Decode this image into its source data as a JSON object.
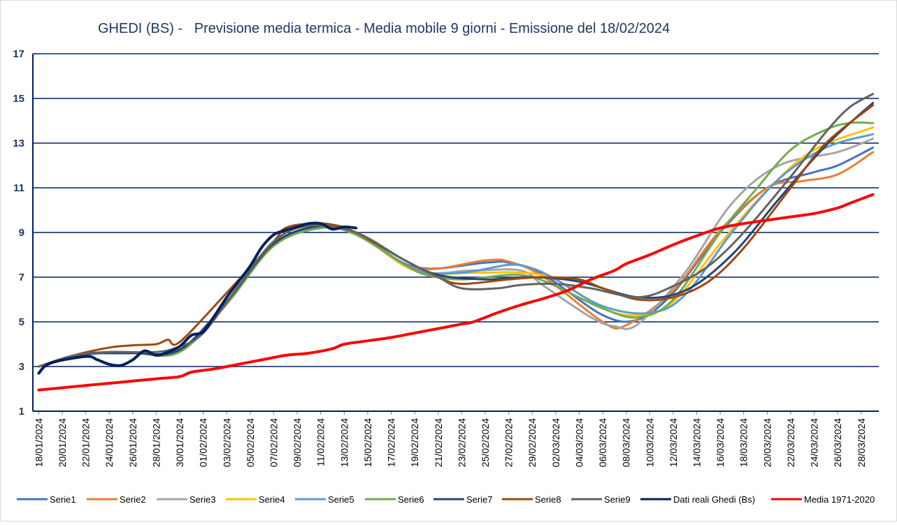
{
  "chart_data": {
    "type": "line",
    "title": "GHEDI (BS) -   Previsione media termica - Media mobile 9 giorni - Emissione del 18/02/2024",
    "xlabel": "",
    "ylabel": "",
    "ylim": [
      1,
      17
    ],
    "y_ticks": [
      1,
      3,
      5,
      7,
      9,
      11,
      13,
      15,
      17
    ],
    "grid": true,
    "legend_position": "bottom",
    "x_start": "18/01/2024",
    "x_end": "29/03/2024",
    "x_tick_labels": [
      "18/01/2024",
      "20/01/2024",
      "22/01/2024",
      "24/01/2024",
      "26/01/2024",
      "28/01/2024",
      "30/01/2024",
      "01/02/2024",
      "03/02/2024",
      "05/02/2024",
      "07/02/2024",
      "09/02/2024",
      "11/02/2024",
      "13/02/2024",
      "15/02/2024",
      "17/02/2024",
      "19/02/2024",
      "21/02/2024",
      "23/02/2024",
      "25/02/2024",
      "27/02/2024",
      "29/02/2024",
      "02/03/2024",
      "04/03/2024",
      "06/03/2024",
      "08/03/2024",
      "10/03/2024",
      "12/03/2024",
      "14/03/2024",
      "16/03/2024",
      "18/03/2024",
      "20/03/2024",
      "22/03/2024",
      "24/03/2024",
      "26/03/2024",
      "28/03/2024"
    ],
    "series": [
      {
        "name": "Serie1",
        "color": "#4472C4",
        "width": 3,
        "points": [
          [
            "18/01/2024",
            3.0
          ],
          [
            "22/01/2024",
            3.55
          ],
          [
            "26/01/2024",
            3.6
          ],
          [
            "30/01/2024",
            3.75
          ],
          [
            "03/02/2024",
            5.9
          ],
          [
            "07/02/2024",
            8.5
          ],
          [
            "11/02/2024",
            9.25
          ],
          [
            "14/02/2024",
            9.0
          ],
          [
            "19/02/2024",
            7.45
          ],
          [
            "25/02/2024",
            7.65
          ],
          [
            "27/02/2024",
            7.65
          ],
          [
            "01/03/2024",
            7.1
          ],
          [
            "06/03/2024",
            5.3
          ],
          [
            "09/03/2024",
            5.1
          ],
          [
            "12/03/2024",
            6.3
          ],
          [
            "16/03/2024",
            9.0
          ],
          [
            "20/03/2024",
            11.0
          ],
          [
            "24/03/2024",
            11.7
          ],
          [
            "26/03/2024",
            12.0
          ],
          [
            "29/03/2024",
            12.8
          ]
        ]
      },
      {
        "name": "Serie2",
        "color": "#ED7D31",
        "width": 3,
        "points": [
          [
            "18/01/2024",
            3.0
          ],
          [
            "22/01/2024",
            3.55
          ],
          [
            "26/01/2024",
            3.6
          ],
          [
            "30/01/2024",
            3.75
          ],
          [
            "03/02/2024",
            5.9
          ],
          [
            "07/02/2024",
            8.5
          ],
          [
            "11/02/2024",
            9.3
          ],
          [
            "14/02/2024",
            9.0
          ],
          [
            "19/02/2024",
            7.4
          ],
          [
            "25/02/2024",
            7.75
          ],
          [
            "27/02/2024",
            7.7
          ],
          [
            "01/03/2024",
            7.0
          ],
          [
            "06/03/2024",
            5.0
          ],
          [
            "08/03/2024",
            4.85
          ],
          [
            "12/03/2024",
            6.4
          ],
          [
            "16/03/2024",
            9.1
          ],
          [
            "20/03/2024",
            11.0
          ],
          [
            "23/03/2024",
            11.3
          ],
          [
            "26/03/2024",
            11.6
          ],
          [
            "29/03/2024",
            12.6
          ]
        ]
      },
      {
        "name": "Serie3",
        "color": "#A5A5A5",
        "width": 3,
        "points": [
          [
            "18/01/2024",
            3.0
          ],
          [
            "22/01/2024",
            3.55
          ],
          [
            "26/01/2024",
            3.6
          ],
          [
            "30/01/2024",
            3.75
          ],
          [
            "03/02/2024",
            5.8
          ],
          [
            "07/02/2024",
            8.4
          ],
          [
            "11/02/2024",
            9.2
          ],
          [
            "14/02/2024",
            9.0
          ],
          [
            "19/02/2024",
            7.3
          ],
          [
            "24/02/2024",
            7.3
          ],
          [
            "28/02/2024",
            7.3
          ],
          [
            "01/03/2024",
            6.6
          ],
          [
            "05/03/2024",
            5.2
          ],
          [
            "07/03/2024",
            4.8
          ],
          [
            "09/03/2024",
            4.9
          ],
          [
            "13/03/2024",
            7.2
          ],
          [
            "17/03/2024",
            10.3
          ],
          [
            "21/03/2024",
            12.0
          ],
          [
            "26/03/2024",
            12.6
          ],
          [
            "29/03/2024",
            13.2
          ]
        ]
      },
      {
        "name": "Serie4",
        "color": "#FFC000",
        "width": 3,
        "points": [
          [
            "18/01/2024",
            3.0
          ],
          [
            "22/01/2024",
            3.55
          ],
          [
            "26/01/2024",
            3.6
          ],
          [
            "30/01/2024",
            3.75
          ],
          [
            "03/02/2024",
            5.9
          ],
          [
            "07/02/2024",
            8.5
          ],
          [
            "11/02/2024",
            9.25
          ],
          [
            "14/02/2024",
            9.0
          ],
          [
            "19/02/2024",
            7.3
          ],
          [
            "24/02/2024",
            7.2
          ],
          [
            "28/02/2024",
            7.2
          ],
          [
            "02/03/2024",
            6.9
          ],
          [
            "06/03/2024",
            5.6
          ],
          [
            "09/03/2024",
            5.3
          ],
          [
            "12/03/2024",
            5.9
          ],
          [
            "16/03/2024",
            8.5
          ],
          [
            "20/03/2024",
            10.9
          ],
          [
            "24/03/2024",
            12.7
          ],
          [
            "29/03/2024",
            13.7
          ]
        ]
      },
      {
        "name": "Serie5",
        "color": "#5B9BD5",
        "width": 3,
        "points": [
          [
            "18/01/2024",
            3.0
          ],
          [
            "22/01/2024",
            3.55
          ],
          [
            "26/01/2024",
            3.6
          ],
          [
            "30/01/2024",
            3.75
          ],
          [
            "03/02/2024",
            5.9
          ],
          [
            "07/02/2024",
            8.5
          ],
          [
            "11/02/2024",
            9.25
          ],
          [
            "14/02/2024",
            9.0
          ],
          [
            "19/02/2024",
            7.35
          ],
          [
            "23/02/2024",
            7.2
          ],
          [
            "27/02/2024",
            7.55
          ],
          [
            "29/02/2024",
            7.4
          ],
          [
            "02/03/2024",
            6.9
          ],
          [
            "06/03/2024",
            5.7
          ],
          [
            "10/03/2024",
            5.4
          ],
          [
            "13/03/2024",
            6.2
          ],
          [
            "17/03/2024",
            9.0
          ],
          [
            "21/03/2024",
            11.4
          ],
          [
            "25/03/2024",
            12.8
          ],
          [
            "29/03/2024",
            13.4
          ]
        ]
      },
      {
        "name": "Serie6",
        "color": "#70AD47",
        "width": 3,
        "points": [
          [
            "18/01/2024",
            3.0
          ],
          [
            "22/01/2024",
            3.55
          ],
          [
            "26/01/2024",
            3.6
          ],
          [
            "30/01/2024",
            3.65
          ],
          [
            "03/02/2024",
            5.8
          ],
          [
            "07/02/2024",
            8.4
          ],
          [
            "11/02/2024",
            9.2
          ],
          [
            "14/02/2024",
            8.9
          ],
          [
            "18/02/2024",
            7.6
          ],
          [
            "20/02/2024",
            7.1
          ],
          [
            "23/02/2024",
            6.9
          ],
          [
            "27/02/2024",
            7.1
          ],
          [
            "29/02/2024",
            7.0
          ],
          [
            "02/03/2024",
            6.6
          ],
          [
            "06/03/2024",
            5.6
          ],
          [
            "09/03/2024",
            5.2
          ],
          [
            "12/03/2024",
            6.0
          ],
          [
            "16/03/2024",
            9.0
          ],
          [
            "19/03/2024",
            10.9
          ],
          [
            "22/03/2024",
            12.7
          ],
          [
            "25/03/2024",
            13.6
          ],
          [
            "27/03/2024",
            13.9
          ],
          [
            "29/03/2024",
            13.9
          ]
        ]
      },
      {
        "name": "Serie7",
        "color": "#264478",
        "width": 3,
        "points": [
          [
            "18/01/2024",
            3.0
          ],
          [
            "22/01/2024",
            3.55
          ],
          [
            "26/01/2024",
            3.6
          ],
          [
            "30/01/2024",
            3.75
          ],
          [
            "03/02/2024",
            5.9
          ],
          [
            "07/02/2024",
            8.5
          ],
          [
            "11/02/2024",
            9.3
          ],
          [
            "14/02/2024",
            9.0
          ],
          [
            "18/02/2024",
            7.8
          ],
          [
            "21/02/2024",
            7.1
          ],
          [
            "25/02/2024",
            6.9
          ],
          [
            "29/02/2024",
            7.0
          ],
          [
            "04/03/2024",
            6.8
          ],
          [
            "09/03/2024",
            6.1
          ],
          [
            "13/03/2024",
            6.4
          ],
          [
            "17/03/2024",
            8.0
          ],
          [
            "21/03/2024",
            10.5
          ],
          [
            "25/03/2024",
            12.9
          ],
          [
            "29/03/2024",
            14.8
          ]
        ]
      },
      {
        "name": "Serie8",
        "color": "#9E480E",
        "width": 3,
        "points": [
          [
            "18/01/2024",
            3.0
          ],
          [
            "21/01/2024",
            3.5
          ],
          [
            "24/01/2024",
            3.85
          ],
          [
            "26/01/2024",
            3.95
          ],
          [
            "28/01/2024",
            4.0
          ],
          [
            "29/01/2024",
            4.2
          ],
          [
            "30/01/2024",
            4.1
          ],
          [
            "03/02/2024",
            6.3
          ],
          [
            "07/02/2024",
            8.6
          ],
          [
            "08/02/2024",
            9.2
          ],
          [
            "10/02/2024",
            9.4
          ],
          [
            "12/02/2024",
            9.35
          ],
          [
            "14/02/2024",
            9.0
          ],
          [
            "18/02/2024",
            7.8
          ],
          [
            "21/02/2024",
            7.0
          ],
          [
            "23/02/2024",
            6.7
          ],
          [
            "27/02/2024",
            6.9
          ],
          [
            "01/03/2024",
            7.0
          ],
          [
            "04/03/2024",
            6.9
          ],
          [
            "06/03/2024",
            6.5
          ],
          [
            "09/03/2024",
            6.0
          ],
          [
            "12/03/2024",
            6.1
          ],
          [
            "15/03/2024",
            6.8
          ],
          [
            "18/03/2024",
            8.3
          ],
          [
            "22/03/2024",
            11.0
          ],
          [
            "25/03/2024",
            13.0
          ],
          [
            "29/03/2024",
            14.7
          ]
        ]
      },
      {
        "name": "Serie9",
        "color": "#636363",
        "width": 3,
        "points": [
          [
            "18/01/2024",
            3.0
          ],
          [
            "21/01/2024",
            3.5
          ],
          [
            "24/01/2024",
            3.65
          ],
          [
            "28/01/2024",
            3.65
          ],
          [
            "30/01/2024",
            3.9
          ],
          [
            "01/02/2024",
            4.5
          ],
          [
            "04/02/2024",
            6.6
          ],
          [
            "07/02/2024",
            8.6
          ],
          [
            "10/02/2024",
            9.3
          ],
          [
            "14/02/2024",
            9.0
          ],
          [
            "18/02/2024",
            7.8
          ],
          [
            "21/02/2024",
            7.0
          ],
          [
            "23/02/2024",
            6.5
          ],
          [
            "26/02/2024",
            6.5
          ],
          [
            "28/02/2024",
            6.65
          ],
          [
            "02/03/2024",
            6.7
          ],
          [
            "05/03/2024",
            6.5
          ],
          [
            "09/03/2024",
            6.1
          ],
          [
            "12/03/2024",
            6.6
          ],
          [
            "15/03/2024",
            7.5
          ],
          [
            "18/03/2024",
            9.0
          ],
          [
            "22/03/2024",
            11.5
          ],
          [
            "25/03/2024",
            13.5
          ],
          [
            "27/03/2024",
            14.6
          ],
          [
            "29/03/2024",
            15.2
          ]
        ]
      },
      {
        "name": "Dati reali Ghedi (Bs)",
        "color": "#002060",
        "width": 4,
        "points": [
          [
            "18/01/2024",
            2.7
          ],
          [
            "19/01/2024",
            3.15
          ],
          [
            "22/01/2024",
            3.45
          ],
          [
            "23/01/2024",
            3.3
          ],
          [
            "24/01/2024",
            3.1
          ],
          [
            "25/01/2024",
            3.05
          ],
          [
            "26/01/2024",
            3.3
          ],
          [
            "27/01/2024",
            3.7
          ],
          [
            "28/01/2024",
            3.5
          ],
          [
            "29/01/2024",
            3.65
          ],
          [
            "30/01/2024",
            3.9
          ],
          [
            "31/01/2024",
            4.4
          ],
          [
            "01/02/2024",
            4.55
          ],
          [
            "02/02/2024",
            5.3
          ],
          [
            "03/02/2024",
            6.1
          ],
          [
            "04/02/2024",
            6.8
          ],
          [
            "05/02/2024",
            7.5
          ],
          [
            "06/02/2024",
            8.35
          ],
          [
            "07/02/2024",
            8.9
          ],
          [
            "08/02/2024",
            9.1
          ],
          [
            "09/02/2024",
            9.25
          ],
          [
            "10/02/2024",
            9.4
          ],
          [
            "11/02/2024",
            9.4
          ],
          [
            "12/02/2024",
            9.15
          ],
          [
            "13/02/2024",
            9.25
          ],
          [
            "14/02/2024",
            9.2
          ]
        ]
      },
      {
        "name": "Media 1971-2020",
        "color": "#FF0000",
        "width": 4,
        "points": [
          [
            "18/01/2024",
            1.95
          ],
          [
            "21/01/2024",
            2.1
          ],
          [
            "24/01/2024",
            2.25
          ],
          [
            "26/01/2024",
            2.35
          ],
          [
            "28/01/2024",
            2.45
          ],
          [
            "30/01/2024",
            2.55
          ],
          [
            "31/01/2024",
            2.75
          ],
          [
            "02/02/2024",
            2.9
          ],
          [
            "04/02/2024",
            3.1
          ],
          [
            "06/02/2024",
            3.3
          ],
          [
            "08/02/2024",
            3.5
          ],
          [
            "10/02/2024",
            3.6
          ],
          [
            "12/02/2024",
            3.8
          ],
          [
            "13/02/2024",
            4.0
          ],
          [
            "15/02/2024",
            4.15
          ],
          [
            "17/02/2024",
            4.3
          ],
          [
            "19/02/2024",
            4.5
          ],
          [
            "21/02/2024",
            4.7
          ],
          [
            "23/02/2024",
            4.9
          ],
          [
            "24/02/2024",
            5.0
          ],
          [
            "26/02/2024",
            5.4
          ],
          [
            "28/02/2024",
            5.75
          ],
          [
            "01/03/2024",
            6.05
          ],
          [
            "03/03/2024",
            6.4
          ],
          [
            "05/03/2024",
            6.9
          ],
          [
            "07/03/2024",
            7.3
          ],
          [
            "08/03/2024",
            7.6
          ],
          [
            "10/03/2024",
            8.0
          ],
          [
            "12/03/2024",
            8.45
          ],
          [
            "14/03/2024",
            8.85
          ],
          [
            "16/03/2024",
            9.2
          ],
          [
            "18/03/2024",
            9.4
          ],
          [
            "20/03/2024",
            9.55
          ],
          [
            "22/03/2024",
            9.7
          ],
          [
            "24/03/2024",
            9.85
          ],
          [
            "26/03/2024",
            10.1
          ],
          [
            "27/03/2024",
            10.3
          ],
          [
            "29/03/2024",
            10.7
          ]
        ]
      }
    ]
  }
}
